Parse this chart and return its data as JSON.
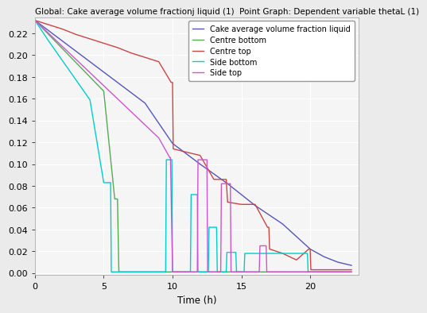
{
  "title": "Global: Cake average volume fractionj liquid (1)  Point Graph: Dependent variable thetaL (1)",
  "xlabel": "Time (h)",
  "xlim": [
    0,
    23.5
  ],
  "ylim": [
    -0.002,
    0.235
  ],
  "yticks": [
    0,
    0.02,
    0.04,
    0.06,
    0.08,
    0.1,
    0.12,
    0.14,
    0.16,
    0.18,
    0.2,
    0.22
  ],
  "xticks": [
    0,
    5,
    10,
    15,
    20
  ],
  "bg_color": "#ebebeb",
  "plot_bg": "#f5f5f5",
  "series": {
    "cake_avg": {
      "label": "Cake average volume fraction liquid",
      "color": "#5555bb",
      "lw": 1.0,
      "x": [
        0,
        2,
        4,
        6,
        8,
        10,
        12,
        14,
        16,
        18,
        20,
        21,
        22,
        23
      ],
      "y": [
        0.232,
        0.213,
        0.194,
        0.175,
        0.156,
        0.119,
        0.1,
        0.082,
        0.062,
        0.045,
        0.022,
        0.015,
        0.01,
        0.007
      ]
    },
    "centre_bottom": {
      "label": "Centre bottom",
      "color": "#55aa55",
      "lw": 1.0,
      "x": [
        0,
        1,
        2,
        3,
        4,
        5,
        5.8,
        6.0,
        6.1,
        7,
        8,
        9,
        9.8,
        10.0,
        10.05,
        10.1,
        11,
        12,
        13,
        14,
        15,
        16,
        17,
        18,
        19,
        20,
        21,
        22,
        23
      ],
      "y": [
        0.232,
        0.219,
        0.206,
        0.193,
        0.18,
        0.167,
        0.068,
        0.068,
        0.001,
        0.001,
        0.001,
        0.001,
        0.001,
        0.001,
        0.001,
        0.001,
        0.001,
        0.001,
        0.001,
        0.001,
        0.001,
        0.001,
        0.001,
        0.001,
        0.001,
        0.001,
        0.001,
        0.001,
        0.001
      ]
    },
    "centre_top": {
      "label": "Centre top",
      "color": "#cc4444",
      "lw": 1.0,
      "x": [
        0,
        1,
        2,
        3,
        4,
        5,
        6,
        7,
        8,
        9,
        9.9,
        10.0,
        10.05,
        11,
        12,
        13,
        13.9,
        14.0,
        14.05,
        15,
        16,
        16.9,
        17.0,
        17.05,
        18,
        19,
        19.9,
        20.0,
        20.05,
        21,
        21.9,
        22.0,
        22.05,
        23
      ],
      "y": [
        0.232,
        0.228,
        0.224,
        0.219,
        0.215,
        0.211,
        0.207,
        0.202,
        0.198,
        0.194,
        0.175,
        0.175,
        0.114,
        0.111,
        0.108,
        0.086,
        0.086,
        0.065,
        0.065,
        0.063,
        0.063,
        0.042,
        0.042,
        0.022,
        0.018,
        0.012,
        0.022,
        0.022,
        0.003,
        0.003,
        0.003,
        0.003,
        0.003,
        0.003
      ]
    },
    "side_bottom": {
      "label": "Side bottom",
      "color": "#00cccc",
      "lw": 1.0,
      "x": [
        0,
        1,
        2,
        3,
        4,
        5,
        5.5,
        5.55,
        6.3,
        6.35,
        9.5,
        9.55,
        9.9,
        9.95,
        10.0,
        10.05,
        11.3,
        11.35,
        11.8,
        11.85,
        12.6,
        12.65,
        13.2,
        13.25,
        13.9,
        13.95,
        14.6,
        14.65,
        15.2,
        15.25,
        19.8,
        19.85,
        20.2,
        20.25,
        22,
        23
      ],
      "y": [
        0.232,
        0.213,
        0.195,
        0.177,
        0.159,
        0.083,
        0.083,
        0.001,
        0.001,
        0.001,
        0.001,
        0.104,
        0.104,
        0.104,
        0.001,
        0.001,
        0.001,
        0.072,
        0.072,
        0.001,
        0.001,
        0.042,
        0.042,
        0.001,
        0.001,
        0.019,
        0.019,
        0.001,
        0.001,
        0.018,
        0.018,
        0.001,
        0.001,
        0.001,
        0.001,
        0.001
      ]
    },
    "side_top": {
      "label": "Side top",
      "color": "#cc55cc",
      "lw": 1.0,
      "x": [
        0,
        1,
        2,
        3,
        4,
        5,
        6,
        7,
        8,
        9,
        9.8,
        9.85,
        10.0,
        10.05,
        11.8,
        11.85,
        12.5,
        12.55,
        13.5,
        13.55,
        14.2,
        14.25,
        16.3,
        16.35,
        16.8,
        16.85,
        20.0,
        20.05,
        23
      ],
      "y": [
        0.232,
        0.22,
        0.208,
        0.196,
        0.184,
        0.172,
        0.16,
        0.148,
        0.136,
        0.124,
        0.106,
        0.106,
        0.001,
        0.001,
        0.001,
        0.104,
        0.104,
        0.001,
        0.001,
        0.082,
        0.082,
        0.001,
        0.001,
        0.025,
        0.025,
        0.001,
        0.001,
        0.001,
        0.001
      ]
    }
  },
  "title_fontsize": 7.5,
  "tick_fontsize": 8,
  "label_fontsize": 8.5,
  "legend_fontsize": 7
}
